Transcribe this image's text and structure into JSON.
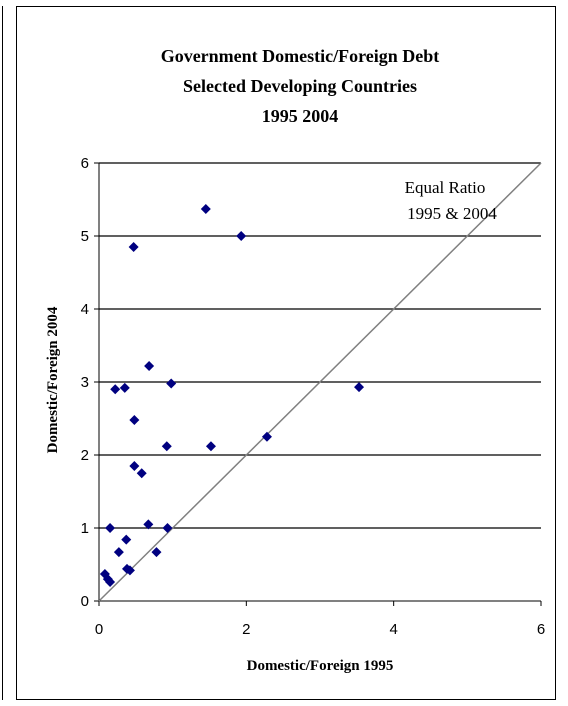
{
  "chart_data": {
    "type": "scatter",
    "title_lines": [
      "Government Domestic/Foreign Debt",
      "Selected Developing Countries",
      "1995 2004"
    ],
    "xlabel": "Domestic/Foreign 1995",
    "ylabel": "Domestic/Foreign 2004",
    "xlim": [
      0,
      6
    ],
    "ylim": [
      0,
      6
    ],
    "xticks": [
      0,
      2,
      4,
      6
    ],
    "yticks": [
      0,
      1,
      2,
      3,
      4,
      5,
      6
    ],
    "grid": "horizontal",
    "legend": "none",
    "marker": "diamond",
    "marker_color": "#000080",
    "annotation_lines": [
      "Equal Ratio",
      "1995 & 2004"
    ],
    "reference_line": {
      "from": [
        0,
        0
      ],
      "to": [
        6,
        6
      ],
      "color": "#808080"
    },
    "series": [
      {
        "points": [
          [
            0.08,
            0.37
          ],
          [
            0.12,
            0.3
          ],
          [
            0.15,
            0.26
          ],
          [
            0.15,
            1.0
          ],
          [
            0.22,
            2.9
          ],
          [
            0.27,
            0.67
          ],
          [
            0.35,
            2.92
          ],
          [
            0.37,
            0.84
          ],
          [
            0.38,
            0.44
          ],
          [
            0.42,
            0.42
          ],
          [
            0.47,
            4.85
          ],
          [
            0.48,
            2.48
          ],
          [
            0.48,
            1.85
          ],
          [
            0.58,
            1.75
          ],
          [
            0.67,
            1.05
          ],
          [
            0.68,
            3.22
          ],
          [
            0.78,
            0.67
          ],
          [
            0.92,
            2.12
          ],
          [
            0.93,
            1.0
          ],
          [
            0.98,
            2.98
          ],
          [
            1.45,
            5.37
          ],
          [
            1.52,
            2.12
          ],
          [
            1.93,
            5.0
          ],
          [
            2.28,
            2.25
          ],
          [
            3.53,
            2.93
          ]
        ]
      }
    ]
  }
}
